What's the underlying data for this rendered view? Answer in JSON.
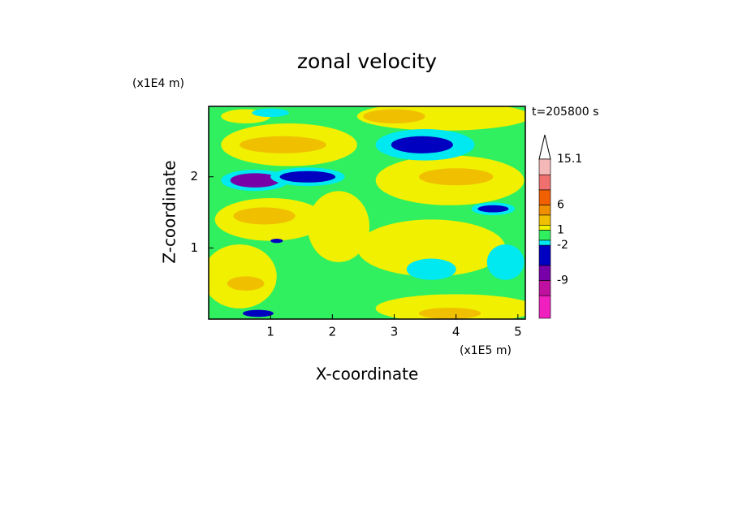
{
  "chart_data": {
    "type": "contour",
    "title": "zonal velocity",
    "x_label": "X-coordinate",
    "y_label": "Z-coordinate",
    "x_unit": "(x1E5 m)",
    "y_unit": "(x1E4 m)",
    "time_label": "t=205800 s",
    "xlim": [
      0,
      5.12
    ],
    "ylim": [
      0,
      2.99
    ],
    "xticks": [
      1,
      2,
      3,
      4,
      5
    ],
    "yticks": [
      1,
      2
    ],
    "background_value": 0,
    "levels": [
      -16.5,
      -12,
      -9,
      -6,
      -2,
      -1,
      1,
      2,
      4,
      6,
      9,
      12,
      15.1
    ],
    "colors": [
      "#f020c0",
      "#c010a0",
      "#7800a8",
      "#0000c0",
      "#00e8f0",
      "#30f060",
      "#f0f000",
      "#f0c000",
      "#f09000",
      "#f06000",
      "#f07070",
      "#f4b8b8"
    ],
    "colorbar_ticks": [
      15.1,
      6,
      1,
      -2,
      -9
    ],
    "field": [
      {
        "x": 1.3,
        "z": 2.45,
        "rx": 1.1,
        "rz": 0.3,
        "value": 1.5
      },
      {
        "x": 1.2,
        "z": 2.45,
        "rx": 0.7,
        "rz": 0.12,
        "value": 3
      },
      {
        "x": 0.6,
        "z": 2.85,
        "rx": 0.4,
        "rz": 0.1,
        "value": 1.5
      },
      {
        "x": 3.8,
        "z": 2.85,
        "rx": 1.4,
        "rz": 0.2,
        "value": 1.5
      },
      {
        "x": 3.0,
        "z": 2.85,
        "rx": 0.5,
        "rz": 0.1,
        "value": 3
      },
      {
        "x": 3.9,
        "z": 1.95,
        "rx": 1.2,
        "rz": 0.35,
        "value": 1.5
      },
      {
        "x": 4.0,
        "z": 2.0,
        "rx": 0.6,
        "rz": 0.12,
        "value": 3
      },
      {
        "x": 1.0,
        "z": 1.4,
        "rx": 0.9,
        "rz": 0.3,
        "value": 1.5
      },
      {
        "x": 0.9,
        "z": 1.45,
        "rx": 0.5,
        "rz": 0.12,
        "value": 3
      },
      {
        "x": 0.5,
        "z": 0.6,
        "rx": 0.6,
        "rz": 0.45,
        "value": 1.5
      },
      {
        "x": 0.6,
        "z": 0.5,
        "rx": 0.3,
        "rz": 0.1,
        "value": 3
      },
      {
        "x": 3.6,
        "z": 1.0,
        "rx": 1.2,
        "rz": 0.4,
        "value": 1.5
      },
      {
        "x": 4.0,
        "z": 0.15,
        "rx": 1.3,
        "rz": 0.2,
        "value": 1.5
      },
      {
        "x": 3.9,
        "z": 0.08,
        "rx": 0.5,
        "rz": 0.08,
        "value": 3
      },
      {
        "x": 2.1,
        "z": 1.3,
        "rx": 0.5,
        "rz": 0.5,
        "value": 1.5
      },
      {
        "x": 3.6,
        "z": 0.7,
        "rx": 0.4,
        "rz": 0.15,
        "value": -1.5
      },
      {
        "x": 4.8,
        "z": 0.8,
        "rx": 0.3,
        "rz": 0.25,
        "value": -1.5
      },
      {
        "x": 1.0,
        "z": 2.9,
        "rx": 0.3,
        "rz": 0.06,
        "value": -1.5
      },
      {
        "x": 0.75,
        "z": 1.95,
        "rx": 0.55,
        "rz": 0.15,
        "value": -1.5
      },
      {
        "x": 0.75,
        "z": 1.95,
        "rx": 0.4,
        "rz": 0.1,
        "value": -7
      },
      {
        "x": 1.6,
        "z": 2.0,
        "rx": 0.6,
        "rz": 0.13,
        "value": -1.5
      },
      {
        "x": 1.6,
        "z": 2.0,
        "rx": 0.45,
        "rz": 0.08,
        "value": -4
      },
      {
        "x": 3.5,
        "z": 2.45,
        "rx": 0.8,
        "rz": 0.22,
        "value": -1.5
      },
      {
        "x": 3.45,
        "z": 2.45,
        "rx": 0.5,
        "rz": 0.12,
        "value": -5
      },
      {
        "x": 4.6,
        "z": 1.55,
        "rx": 0.35,
        "rz": 0.09,
        "value": -1.5
      },
      {
        "x": 4.6,
        "z": 1.55,
        "rx": 0.25,
        "rz": 0.05,
        "value": -4
      },
      {
        "x": 0.8,
        "z": 0.08,
        "rx": 0.25,
        "rz": 0.05,
        "value": -5
      },
      {
        "x": 1.1,
        "z": 1.1,
        "rx": 0.1,
        "rz": 0.03,
        "value": -5
      }
    ]
  }
}
